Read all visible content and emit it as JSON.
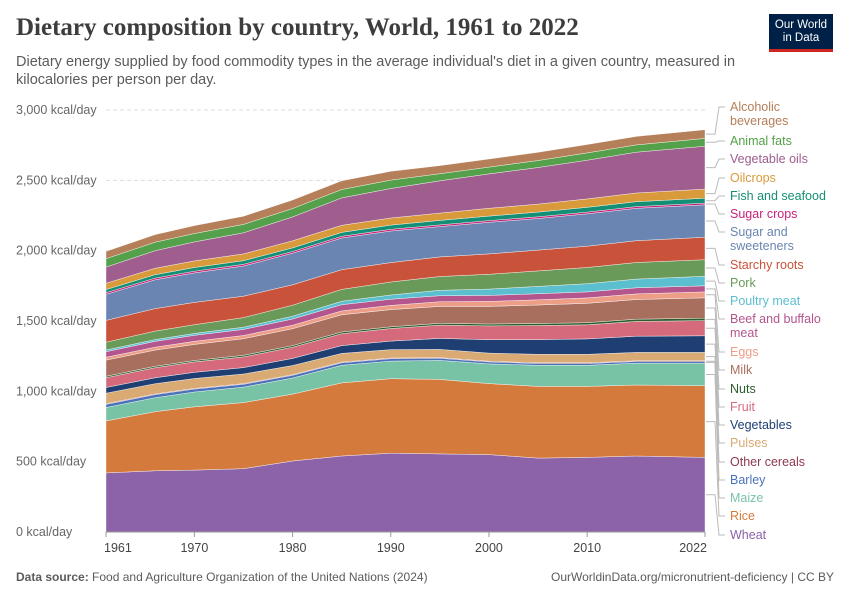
{
  "header": {
    "title": "Dietary composition by country, World, 1961 to 2022",
    "subtitle": "Dietary energy supplied by food commodity types in the average individual's diet in a given country, measured in kilocalories per person per day.",
    "logo_line1": "Our World",
    "logo_line2": "in Data"
  },
  "footer": {
    "source_label": "Data source:",
    "source_text": " Food and Agriculture Organization of the United Nations (2024)",
    "right_text": "OurWorldinData.org/micronutrient-deficiency | CC BY"
  },
  "chart_data": {
    "type": "area",
    "stacked": true,
    "title": "Dietary composition by country, World, 1961 to 2022",
    "x": [
      1961,
      1966,
      1970,
      1975,
      1980,
      1985,
      1990,
      1995,
      2000,
      2005,
      2010,
      2015,
      2022
    ],
    "x_ticks": [
      1961,
      1970,
      1980,
      1990,
      2000,
      2010,
      2022
    ],
    "y_ticks": [
      0,
      500,
      1000,
      1500,
      2000,
      2500,
      3000
    ],
    "y_tick_labels": [
      "0 kcal/day",
      "500 kcal/day",
      "1,000 kcal/day",
      "1,500 kcal/day",
      "2,000 kcal/day",
      "2,500 kcal/day",
      "3,000 kcal/day"
    ],
    "ylim": [
      0,
      3000
    ],
    "grid": "horizontal dashed",
    "legend_position": "right",
    "series": [
      {
        "name": "Wheat",
        "color": "#8c62a8",
        "values": [
          420,
          435,
          440,
          450,
          505,
          540,
          560,
          555,
          550,
          525,
          530,
          540,
          530
        ]
      },
      {
        "name": "Rice",
        "color": "#d57a3d",
        "values": [
          370,
          420,
          450,
          470,
          475,
          520,
          530,
          530,
          505,
          510,
          505,
          505,
          510
        ]
      },
      {
        "name": "Maize",
        "color": "#78c3a6",
        "values": [
          95,
          100,
          105,
          110,
          115,
          125,
          125,
          135,
          140,
          150,
          150,
          155,
          160
        ]
      },
      {
        "name": "Barley",
        "color": "#4a72b8",
        "values": [
          22,
          22,
          21,
          20,
          19,
          18,
          17,
          15,
          14,
          13,
          13,
          12,
          12
        ]
      },
      {
        "name": "Other cereals",
        "color": "#8f3950",
        "values": [
          5,
          5,
          5,
          5,
          5,
          5,
          5,
          5,
          5,
          5,
          5,
          5,
          5
        ]
      },
      {
        "name": "Pulses",
        "color": "#d9aa73",
        "values": [
          75,
          72,
          70,
          68,
          65,
          62,
          60,
          58,
          58,
          60,
          60,
          60,
          60
        ]
      },
      {
        "name": "Vegetables",
        "color": "#1f3f73",
        "values": [
          40,
          42,
          44,
          46,
          50,
          55,
          60,
          78,
          95,
          105,
          110,
          115,
          118
        ]
      },
      {
        "name": "Fruit",
        "color": "#d66a7d",
        "values": [
          70,
          72,
          74,
          76,
          80,
          85,
          90,
          95,
          98,
          100,
          100,
          105,
          108
        ]
      },
      {
        "name": "Nuts",
        "color": "#2c5e2c",
        "values": [
          10,
          10,
          10,
          11,
          11,
          12,
          12,
          13,
          14,
          14,
          15,
          16,
          17
        ]
      },
      {
        "name": "Milk",
        "color": "#a86e5e",
        "values": [
          115,
          115,
          115,
          118,
          120,
          122,
          122,
          120,
          125,
          132,
          138,
          140,
          145
        ]
      },
      {
        "name": "Eggs",
        "color": "#ed9e87",
        "values": [
          20,
          21,
          22,
          23,
          25,
          28,
          30,
          33,
          35,
          37,
          38,
          40,
          42
        ]
      },
      {
        "name": "Beef and buffalo meat",
        "color": "#b3568e",
        "values": [
          40,
          41,
          42,
          43,
          44,
          44,
          44,
          43,
          43,
          43,
          43,
          43,
          43
        ]
      },
      {
        "name": "Poultry meat",
        "color": "#5bbfcf",
        "values": [
          12,
          13,
          14,
          16,
          20,
          24,
          30,
          38,
          45,
          52,
          58,
          62,
          68
        ]
      },
      {
        "name": "Pork",
        "color": "#6a9a5a",
        "values": [
          55,
          60,
          62,
          68,
          78,
          85,
          92,
          98,
          105,
          110,
          115,
          118,
          118
        ]
      },
      {
        "name": "Starchy roots",
        "color": "#c9533a",
        "values": [
          155,
          160,
          158,
          152,
          145,
          140,
          138,
          140,
          145,
          148,
          152,
          155,
          160
        ]
      },
      {
        "name": "Sugar and sweeteners",
        "color": "#6a85b2",
        "values": [
          185,
          205,
          210,
          215,
          225,
          225,
          225,
          215,
          225,
          225,
          230,
          230,
          230
        ]
      },
      {
        "name": "Sugar crops",
        "color": "#c8227a",
        "values": [
          12,
          12,
          12,
          12,
          12,
          12,
          12,
          12,
          12,
          12,
          12,
          12,
          12
        ]
      },
      {
        "name": "Fish and seafood",
        "color": "#148f75",
        "values": [
          22,
          24,
          26,
          26,
          26,
          28,
          30,
          32,
          32,
          33,
          34,
          35,
          35
        ]
      },
      {
        "name": "Oilcrops",
        "color": "#d89a3a",
        "values": [
          45,
          46,
          47,
          48,
          50,
          50,
          50,
          52,
          55,
          57,
          60,
          62,
          65
        ]
      },
      {
        "name": "Vegetable oils",
        "color": "#a05e8e",
        "values": [
          115,
          125,
          135,
          150,
          170,
          195,
          210,
          230,
          245,
          260,
          275,
          290,
          305
        ]
      },
      {
        "name": "Animal fats",
        "color": "#55a04a",
        "values": [
          60,
          60,
          60,
          60,
          60,
          60,
          60,
          50,
          48,
          50,
          52,
          52,
          55
        ]
      },
      {
        "name": "Alcoholic beverages",
        "color": "#b47f59",
        "values": [
          52,
          54,
          56,
          58,
          60,
          62,
          62,
          58,
          58,
          58,
          60,
          60,
          62
        ]
      }
    ]
  }
}
